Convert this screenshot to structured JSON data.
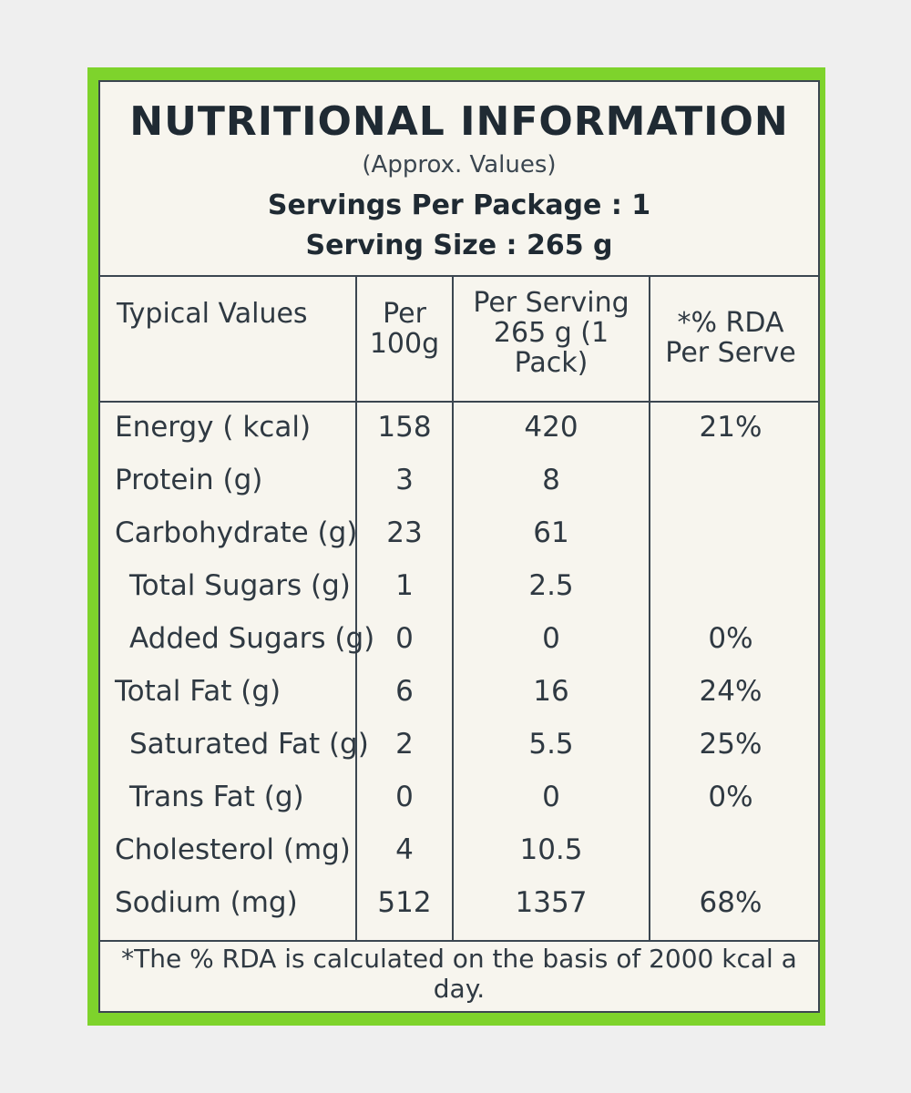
{
  "header": {
    "title": "NUTRITIONAL INFORMATION",
    "subtitle": "(Approx. Values)",
    "servings_per_package": "Servings Per Package : 1",
    "serving_size": "Serving Size : 265 g"
  },
  "table": {
    "columns": [
      "Typical Values",
      "Per 100g",
      "Per Serving 265 g (1 Pack)",
      "*% RDA Per Serve"
    ],
    "rows": [
      {
        "label": "Energy ( kcal)",
        "per100g": "158",
        "perServing": "420",
        "rda": "21%"
      },
      {
        "label": "Protein (g)",
        "per100g": "3",
        "perServing": "8",
        "rda": ""
      },
      {
        "label": "Carbohydrate (g)",
        "per100g": "23",
        "perServing": "61",
        "rda": ""
      },
      {
        "label": "Total Sugars (g)",
        "per100g": "1",
        "perServing": "2.5",
        "rda": ""
      },
      {
        "label": "Added Sugars (g)",
        "per100g": "0",
        "perServing": "0",
        "rda": "0%"
      },
      {
        "label": "Total Fat (g)",
        "per100g": "6",
        "perServing": "16",
        "rda": "24%"
      },
      {
        "label": "Saturated Fat (g)",
        "per100g": "2",
        "perServing": "5.5",
        "rda": "25%"
      },
      {
        "label": "Trans Fat (g)",
        "per100g": "0",
        "perServing": "0",
        "rda": "0%"
      },
      {
        "label": "Cholesterol (mg)",
        "per100g": "4",
        "perServing": "10.5",
        "rda": ""
      },
      {
        "label": "Sodium (mg)",
        "per100g": "512",
        "perServing": "1357",
        "rda": "68%"
      }
    ]
  },
  "footer": "*The % RDA is calculated on the basis of 2000 kcal a day.",
  "colors": {
    "frame": "#7ed32c",
    "panel": "#f7f5ee",
    "ink": "#2f3942"
  }
}
